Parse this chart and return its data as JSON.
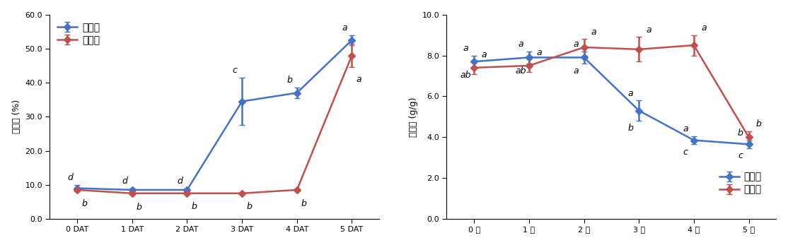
{
  "left": {
    "x_labels": [
      "0 DAT",
      "1 DAT",
      "2 DAT",
      "3 DAT",
      "4 DAT",
      "5 DAT"
    ],
    "x_vals": [
      0,
      1,
      2,
      3,
      4,
      5
    ],
    "blue_y": [
      9.0,
      8.5,
      8.5,
      34.5,
      37.0,
      52.5
    ],
    "blue_yerr": [
      1.0,
      0.5,
      0.5,
      7.0,
      1.5,
      1.5
    ],
    "red_y": [
      8.5,
      7.5,
      7.5,
      7.5,
      8.5,
      48.0
    ],
    "red_yerr": [
      0.5,
      0.5,
      0.3,
      0.3,
      0.5,
      3.5
    ],
    "blue_labels": [
      "d",
      "d",
      "d",
      "c",
      "b",
      "a"
    ],
    "red_labels": [
      "b",
      "b",
      "b",
      "b",
      "b",
      "a"
    ],
    "ylabel": "용해도 (%)",
    "ylim": [
      0.0,
      60.0
    ],
    "yticks": [
      0.0,
      10.0,
      20.0,
      30.0,
      40.0,
      50.0,
      60.0
    ],
    "legend_labels": [
      "금강밀",
      "우리밀"
    ]
  },
  "right": {
    "x_labels": [
      "0 일",
      "1 일",
      "2 일",
      "3 일",
      "4 일",
      "5 일"
    ],
    "x_vals": [
      0,
      1,
      2,
      3,
      4,
      5
    ],
    "blue_y": [
      7.7,
      7.9,
      7.9,
      5.3,
      3.85,
      3.65
    ],
    "blue_yerr": [
      0.3,
      0.3,
      0.3,
      0.5,
      0.2,
      0.2
    ],
    "red_y": [
      7.4,
      7.5,
      8.4,
      8.3,
      8.5,
      4.0
    ],
    "red_yerr": [
      0.3,
      0.3,
      0.4,
      0.6,
      0.5,
      0.3
    ],
    "blue_labels_top": [
      "a",
      "a",
      "a",
      "a",
      "a",
      "b"
    ],
    "blue_labels_bot": [
      "ab",
      "ab",
      "a",
      "b",
      "c",
      "c"
    ],
    "red_labels_top": [
      "a",
      "a",
      "a",
      "a",
      "a",
      "b"
    ],
    "ylabel": "팝윤력 (g/g)",
    "ylim": [
      0.0,
      10.0
    ],
    "yticks": [
      0.0,
      2.0,
      4.0,
      6.0,
      8.0,
      10.0
    ],
    "legend_labels": [
      "금강밀",
      "우리밀"
    ]
  },
  "blue_color": "#4472C4",
  "red_color": "#C0504D",
  "marker": "D",
  "linewidth": 1.8,
  "markersize": 5,
  "label_fontsize": 9,
  "tick_fontsize": 8,
  "legend_fontsize": 10,
  "annot_fontsize": 9
}
